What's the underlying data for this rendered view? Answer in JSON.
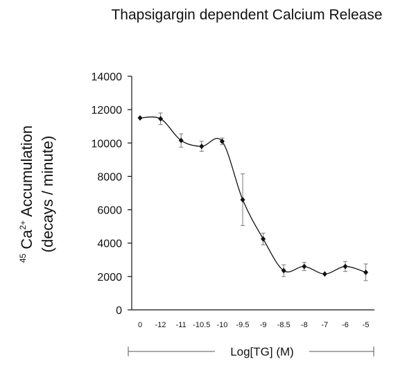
{
  "chart_data": {
    "type": "line",
    "title": "Thapsigargin dependent Calcium Release",
    "ylabel_line1_pre": "45",
    "ylabel_line1_main": " Ca",
    "ylabel_line1_sup": "2+",
    "ylabel_line1_post": " Accumulation",
    "ylabel_line2": "(decays / minute)",
    "xlabel": "Log[TG] (M)",
    "categories": [
      "0",
      "-12",
      "-11",
      "-10.5",
      "-10",
      "-9.5",
      "-9",
      "-8.5",
      "-8",
      "-7",
      "-6",
      "-5"
    ],
    "yticks": [
      0,
      2000,
      4000,
      6000,
      8000,
      10000,
      12000,
      14000
    ],
    "ylim": [
      0,
      14000
    ],
    "grid": false,
    "legend": "none",
    "series": [
      {
        "values": [
          11500,
          11450,
          10150,
          9800,
          10100,
          6600,
          4250,
          2350,
          2600,
          2150,
          2600,
          2250
        ],
        "errors": [
          0,
          350,
          400,
          300,
          200,
          1550,
          350,
          350,
          250,
          0,
          300,
          500
        ]
      }
    ]
  }
}
